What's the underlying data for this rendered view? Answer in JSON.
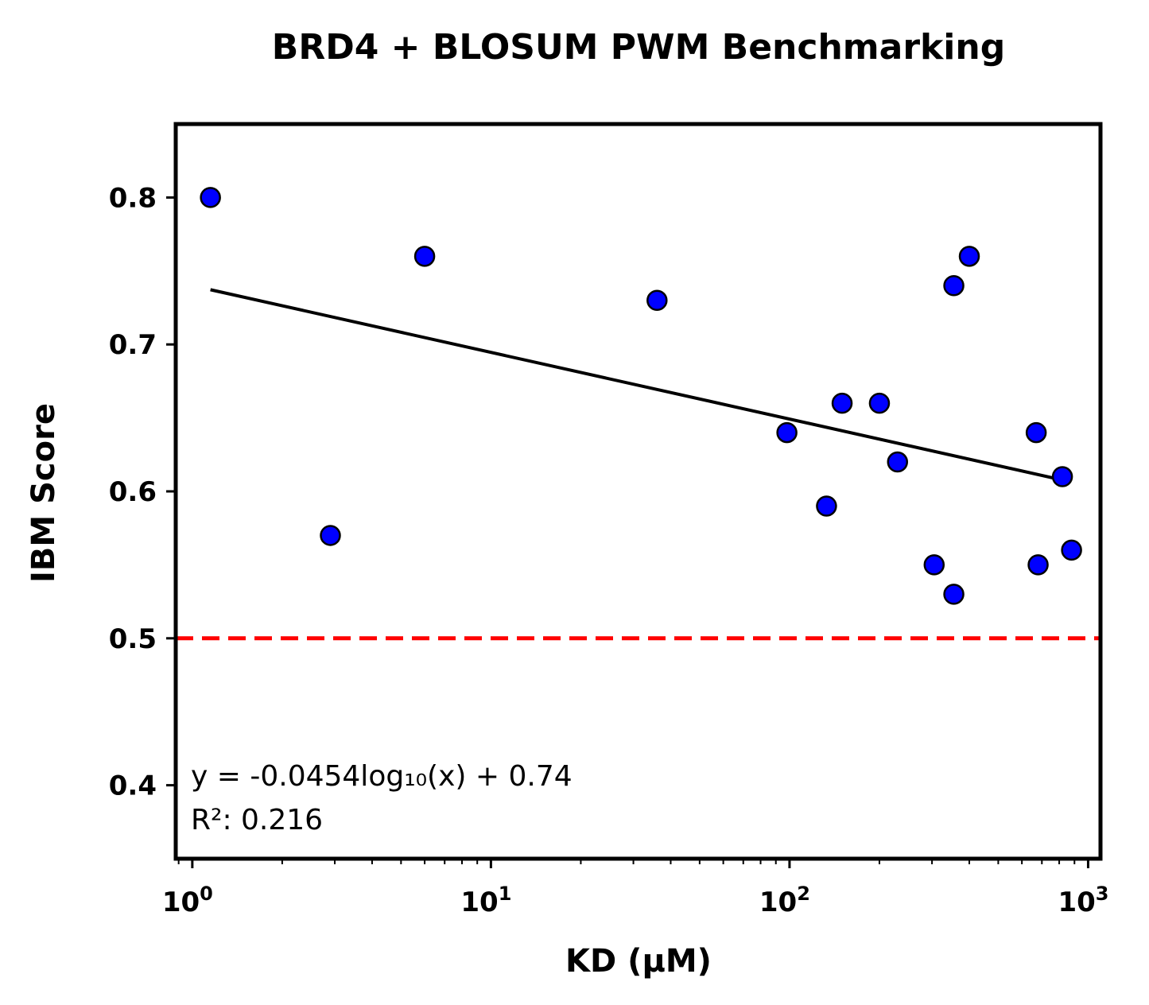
{
  "chart_data": {
    "type": "scatter",
    "title": "BRD4 + BLOSUM PWM Benchmarking",
    "xlabel": "KD (μM)",
    "ylabel": "IBM Score",
    "xscale": "log",
    "xlim": [
      0.88,
      1100
    ],
    "ylim": [
      0.35,
      0.85
    ],
    "xticks": [
      {
        "value": 1,
        "base": "10",
        "exp": "0"
      },
      {
        "value": 10,
        "base": "10",
        "exp": "1"
      },
      {
        "value": 100,
        "base": "10",
        "exp": "2"
      },
      {
        "value": 1000,
        "base": "10",
        "exp": "3"
      }
    ],
    "yticks": [
      {
        "value": 0.4,
        "label": "0.4"
      },
      {
        "value": 0.5,
        "label": "0.5"
      },
      {
        "value": 0.6,
        "label": "0.6"
      },
      {
        "value": 0.7,
        "label": "0.7"
      },
      {
        "value": 0.8,
        "label": "0.8"
      }
    ],
    "series": [
      {
        "x": [
          1.15,
          2.9,
          6.0,
          36,
          98,
          133,
          150,
          200,
          230,
          305,
          355,
          355,
          400,
          670,
          680,
          820,
          880
        ],
        "y": [
          0.8,
          0.57,
          0.76,
          0.73,
          0.64,
          0.59,
          0.66,
          0.66,
          0.62,
          0.55,
          0.74,
          0.53,
          0.76,
          0.64,
          0.55,
          0.61,
          0.56
        ],
        "color": "#0000ff",
        "edgecolor": "#000000"
      }
    ],
    "fit": {
      "slope": -0.0454,
      "intercept": 0.74,
      "x_range": [
        1.15,
        850
      ],
      "color": "#000000",
      "equation": "y = -0.0454log₁₀(x) + 0.74",
      "r2_text": "R²: 0.216"
    },
    "reference_line": {
      "y": 0.5,
      "color": "#ff0000",
      "style": "dashed"
    },
    "grid": false
  }
}
